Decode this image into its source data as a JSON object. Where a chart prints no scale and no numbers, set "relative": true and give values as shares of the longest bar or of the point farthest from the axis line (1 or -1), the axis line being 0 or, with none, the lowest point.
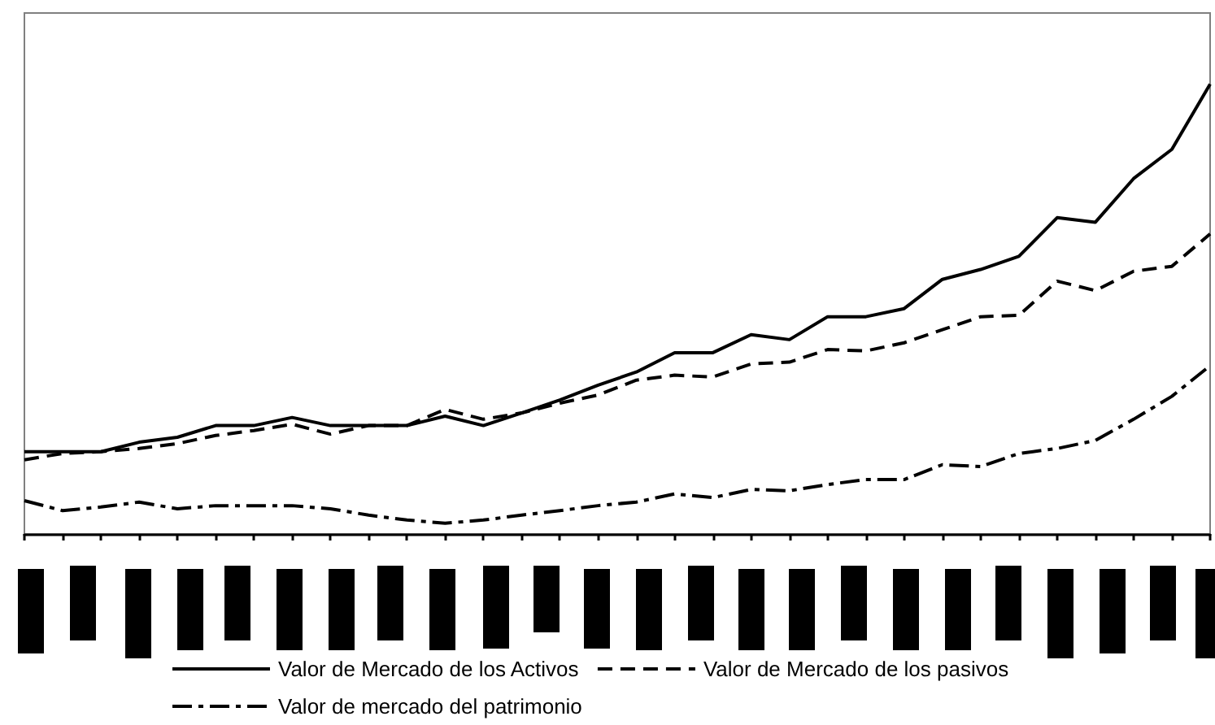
{
  "chart_data": {
    "type": "line",
    "relative": true,
    "categories": [
      null,
      null,
      null,
      null,
      null,
      null,
      null,
      null,
      null,
      null,
      null,
      null,
      null,
      null,
      null,
      null,
      null,
      null,
      null,
      null,
      null,
      null,
      null,
      null,
      null,
      null,
      null,
      null,
      null,
      null,
      null,
      null
    ],
    "series": [
      {
        "name": "Valor de Mercado de los Activos",
        "color": "#000000",
        "line_style": "solid",
        "values": [
          0.183,
          0.183,
          0.183,
          0.204,
          0.215,
          0.241,
          0.241,
          0.259,
          0.241,
          0.241,
          0.241,
          0.262,
          0.241,
          0.269,
          0.298,
          0.331,
          0.36,
          0.403,
          0.403,
          0.443,
          0.432,
          0.483,
          0.483,
          0.501,
          0.566,
          0.588,
          0.617,
          0.703,
          0.693,
          0.79,
          0.855,
          1
        ]
      },
      {
        "name": "Valor de Mercado de los pasivos",
        "color": "#000000",
        "line_style": "dashed",
        "values": [
          0.165,
          0.179,
          0.183,
          0.19,
          0.201,
          0.219,
          0.23,
          0.244,
          0.222,
          0.241,
          0.241,
          0.277,
          0.255,
          0.269,
          0.291,
          0.309,
          0.342,
          0.353,
          0.349,
          0.378,
          0.382,
          0.41,
          0.407,
          0.425,
          0.454,
          0.483,
          0.486,
          0.562,
          0.541,
          0.584,
          0.595,
          0.667
        ]
      },
      {
        "name": "Valor de mercado del patrimonio",
        "color": "#000000",
        "line_style": "dashdot",
        "values": [
          0.074,
          0.052,
          0.06,
          0.071,
          0.056,
          0.063,
          0.063,
          0.063,
          0.056,
          0.042,
          0.031,
          0.024,
          0.031,
          0.042,
          0.052,
          0.063,
          0.071,
          0.089,
          0.081,
          0.099,
          0.096,
          0.11,
          0.121,
          0.121,
          0.154,
          0.15,
          0.179,
          0.19,
          0.208,
          0.255,
          0.306,
          0.374
        ]
      }
    ],
    "legend": "bottom"
  }
}
